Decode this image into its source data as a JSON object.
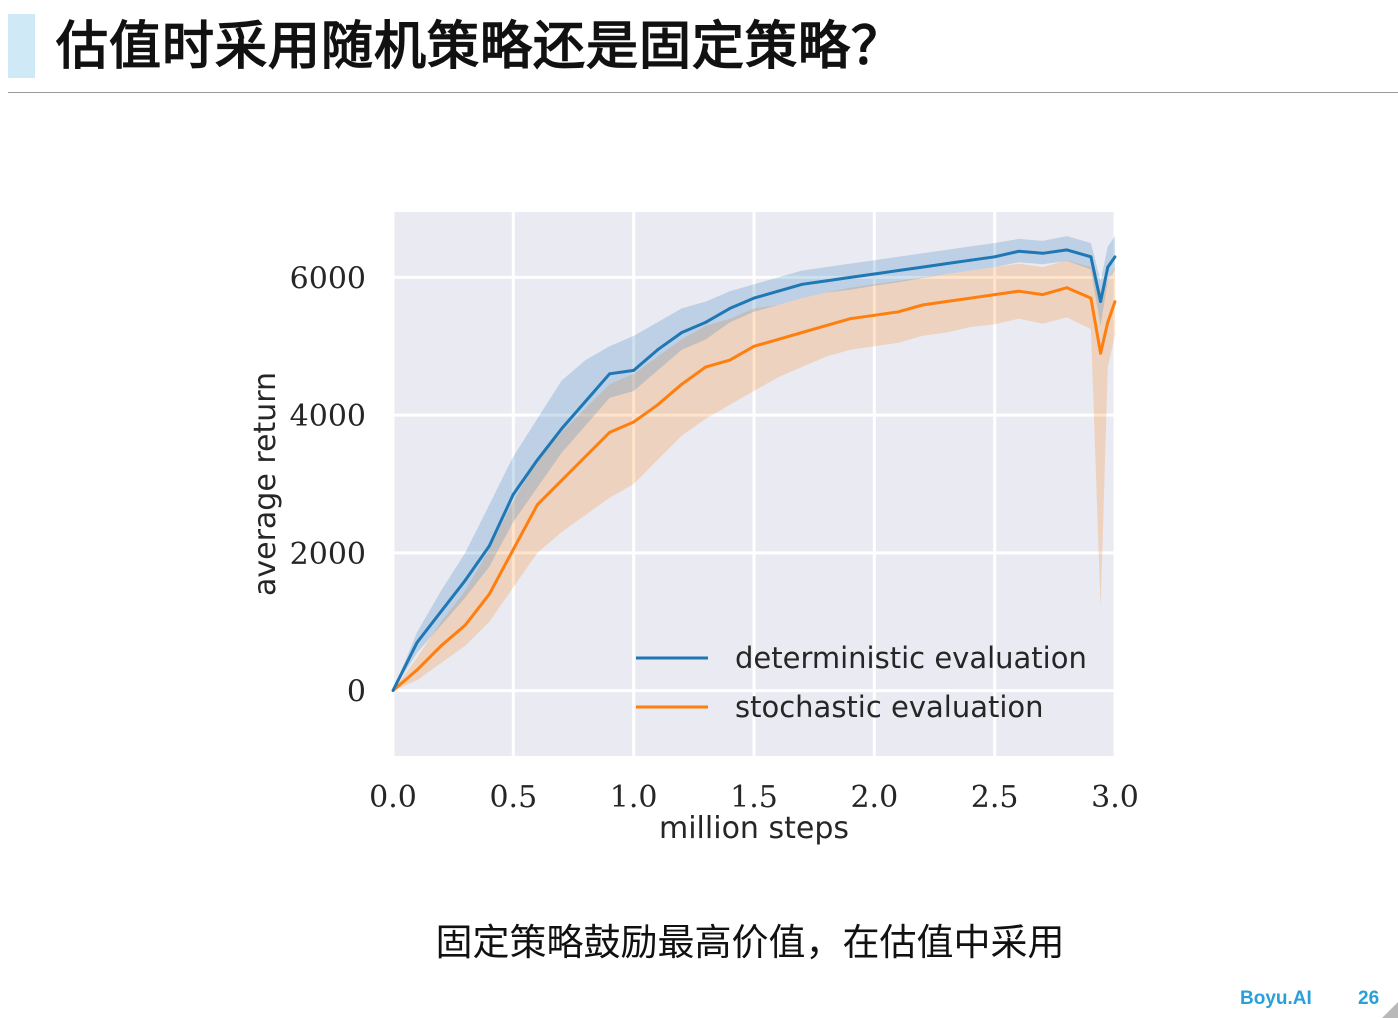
{
  "slide": {
    "title": "估值时采用随机策略还是固定策略？",
    "caption": "固定策略鼓励最高价值，在估值中采用",
    "brand": "Boyu.AI",
    "page_number": "26"
  },
  "chart_data": {
    "type": "line",
    "xlabel": "million steps",
    "ylabel": "average return",
    "xlim": [
      0.0,
      3.0
    ],
    "ylim": [
      -950,
      6950
    ],
    "x_ticks": [
      "0.0",
      "0.5",
      "1.0",
      "1.5",
      "2.0",
      "2.5",
      "3.0"
    ],
    "y_ticks": [
      "0",
      "2000",
      "4000",
      "6000"
    ],
    "grid": true,
    "legend_position": "lower-right",
    "colors": {
      "background": "#eaeaf2",
      "grid": "#ffffff",
      "deterministic": "#1f77b4",
      "stochastic": "#ff7f0e"
    },
    "series": [
      {
        "name": "deterministic evaluation",
        "x": [
          0.0,
          0.1,
          0.2,
          0.3,
          0.4,
          0.5,
          0.6,
          0.7,
          0.8,
          0.9,
          1.0,
          1.1,
          1.2,
          1.3,
          1.4,
          1.5,
          1.6,
          1.7,
          1.8,
          1.9,
          2.0,
          2.1,
          2.2,
          2.3,
          2.4,
          2.5,
          2.6,
          2.7,
          2.8,
          2.9,
          2.94,
          2.97,
          3.0
        ],
        "y": [
          0,
          700,
          1150,
          1600,
          2100,
          2850,
          3350,
          3800,
          4200,
          4600,
          4650,
          4950,
          5200,
          5350,
          5550,
          5700,
          5800,
          5900,
          5950,
          6000,
          6050,
          6100,
          6150,
          6200,
          6250,
          6300,
          6380,
          6350,
          6400,
          6300,
          5650,
          6150,
          6300
        ],
        "lower": [
          0,
          550,
          950,
          1350,
          1800,
          2450,
          2950,
          3450,
          3850,
          4250,
          4350,
          4650,
          4950,
          5100,
          5350,
          5500,
          5600,
          5700,
          5780,
          5820,
          5880,
          5930,
          5990,
          6050,
          6100,
          6150,
          6220,
          6190,
          6240,
          6120,
          5300,
          5950,
          6120
        ],
        "upper": [
          0,
          850,
          1450,
          2000,
          2700,
          3400,
          3950,
          4500,
          4800,
          5000,
          5150,
          5350,
          5550,
          5650,
          5800,
          5900,
          6000,
          6100,
          6150,
          6200,
          6250,
          6300,
          6350,
          6400,
          6450,
          6500,
          6560,
          6530,
          6600,
          6500,
          5950,
          6450,
          6600
        ]
      },
      {
        "name": "stochastic evaluation",
        "x": [
          0.0,
          0.1,
          0.2,
          0.3,
          0.4,
          0.5,
          0.6,
          0.7,
          0.8,
          0.9,
          1.0,
          1.1,
          1.2,
          1.3,
          1.4,
          1.5,
          1.6,
          1.7,
          1.8,
          1.9,
          2.0,
          2.1,
          2.2,
          2.3,
          2.4,
          2.5,
          2.6,
          2.7,
          2.8,
          2.9,
          2.94,
          2.97,
          3.0
        ],
        "y": [
          0,
          300,
          650,
          950,
          1400,
          2050,
          2700,
          3050,
          3400,
          3750,
          3900,
          4150,
          4450,
          4700,
          4800,
          5000,
          5100,
          5200,
          5300,
          5400,
          5450,
          5500,
          5600,
          5650,
          5700,
          5750,
          5800,
          5750,
          5850,
          5700,
          4900,
          5350,
          5650
        ],
        "lower": [
          0,
          150,
          400,
          650,
          1000,
          1500,
          2000,
          2300,
          2550,
          2800,
          3000,
          3350,
          3700,
          3950,
          4150,
          4350,
          4550,
          4700,
          4850,
          4950,
          5000,
          5050,
          5150,
          5200,
          5280,
          5320,
          5400,
          5330,
          5420,
          5250,
          1200,
          4700,
          5150
        ],
        "upper": [
          0,
          480,
          1000,
          1450,
          2050,
          2750,
          3350,
          3750,
          4100,
          4450,
          4600,
          4850,
          5100,
          5300,
          5400,
          5550,
          5600,
          5700,
          5780,
          5850,
          5900,
          5950,
          6000,
          6050,
          6100,
          6150,
          6200,
          6150,
          6250,
          6150,
          5800,
          5950,
          6150
        ]
      }
    ]
  }
}
